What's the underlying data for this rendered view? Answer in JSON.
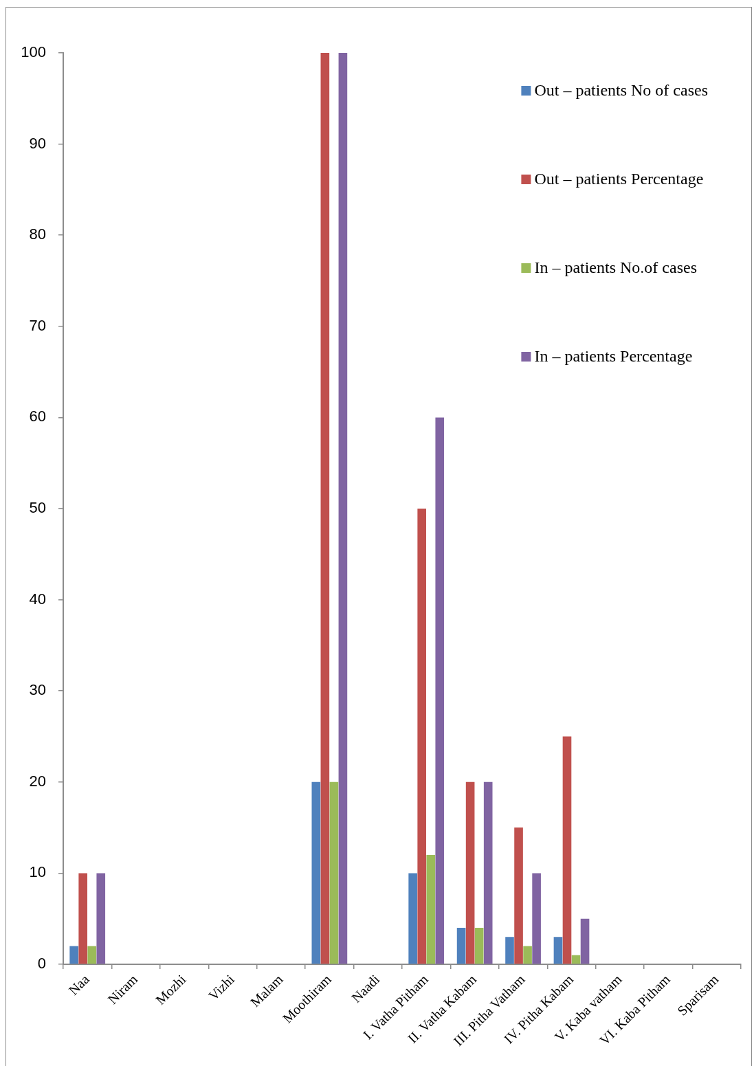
{
  "chart_data": {
    "type": "bar",
    "categories": [
      "Naa",
      "Niram",
      "Mozhi",
      "Vizhi",
      "Malam",
      "Moothiram",
      "Naadi",
      "I. Vatha Pitham",
      "II. Vatha Kabam",
      "III. Pitha Vatham",
      "IV. Pitha Kabam",
      "V. Kaba vatham",
      "VI. Kaba Pitham",
      "Sparisam"
    ],
    "series": [
      {
        "name": "Out – patients No of cases",
        "color": "#4f81bd",
        "values": [
          2,
          0,
          0,
          0,
          0,
          20,
          0,
          10,
          4,
          3,
          3,
          0,
          0,
          0
        ]
      },
      {
        "name": "Out – patients Percentage",
        "color": "#c0504d",
        "values": [
          10,
          0,
          0,
          0,
          0,
          100,
          0,
          50,
          20,
          15,
          25,
          0,
          0,
          0
        ]
      },
      {
        "name": "In – patients No.of cases",
        "color": "#9bbb59",
        "values": [
          2,
          0,
          0,
          0,
          0,
          20,
          0,
          12,
          4,
          2,
          1,
          0,
          0,
          0
        ]
      },
      {
        "name": "In – patients Percentage",
        "color": "#8064a2",
        "values": [
          10,
          0,
          0,
          0,
          0,
          100,
          0,
          60,
          20,
          10,
          5,
          0,
          0,
          0
        ]
      }
    ],
    "ylim": [
      0,
      100
    ],
    "yticks": [
      0,
      10,
      20,
      30,
      40,
      50,
      60,
      70,
      80,
      90,
      100
    ],
    "legend": "top right"
  }
}
